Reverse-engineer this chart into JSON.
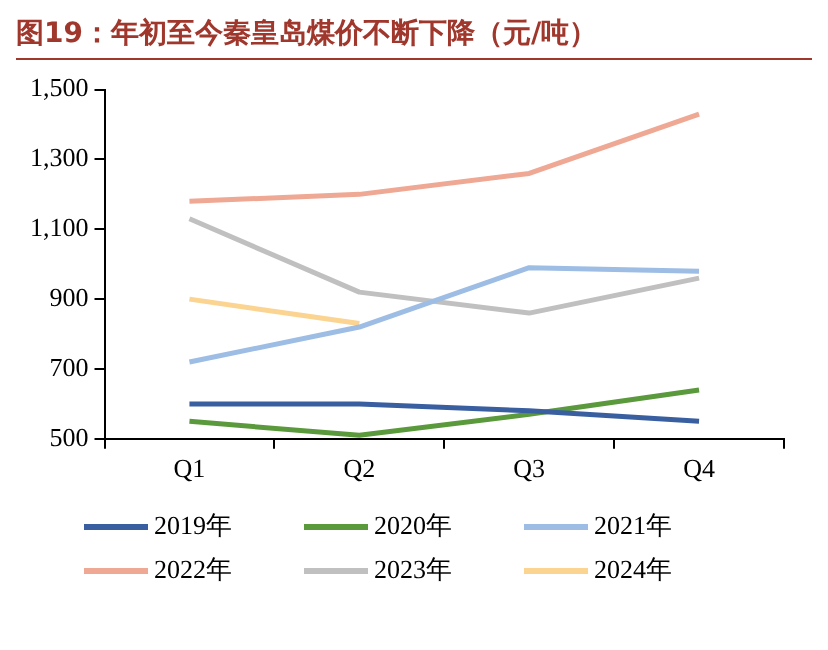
{
  "chart_data": {
    "type": "line",
    "title": "图19：年初至今秦皇岛煤价不断下降（元/吨）",
    "categories": [
      "Q1",
      "Q2",
      "Q3",
      "Q4"
    ],
    "series": [
      {
        "name": "2019年",
        "color": "#3a5fa0",
        "values": [
          600,
          600,
          580,
          550
        ]
      },
      {
        "name": "2020年",
        "color": "#5b9a3c",
        "values": [
          550,
          510,
          570,
          640
        ]
      },
      {
        "name": "2021年",
        "color": "#9dbde4",
        "values": [
          720,
          820,
          990,
          980
        ]
      },
      {
        "name": "2022年",
        "color": "#eea894",
        "values": [
          1180,
          1200,
          1260,
          1430
        ]
      },
      {
        "name": "2023年",
        "color": "#c0c0c0",
        "values": [
          1130,
          920,
          860,
          960
        ]
      },
      {
        "name": "2024年",
        "color": "#fad490",
        "values": [
          900,
          830,
          null,
          null
        ]
      }
    ],
    "ylim": [
      500,
      1500
    ],
    "yticks": [
      {
        "value": 500,
        "label": "500"
      },
      {
        "value": 700,
        "label": "700"
      },
      {
        "value": 900,
        "label": "900"
      },
      {
        "value": 1100,
        "label": "1,100"
      },
      {
        "value": 1300,
        "label": "1,300"
      },
      {
        "value": 1500,
        "label": "1,500"
      }
    ],
    "grid": false,
    "legend": "bottom",
    "marker": "none",
    "line_style": "solid"
  }
}
